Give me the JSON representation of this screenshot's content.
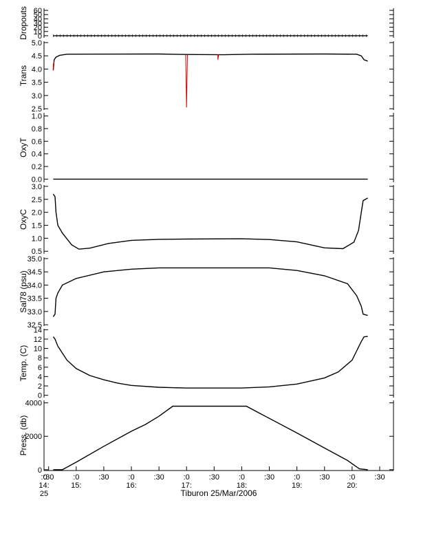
{
  "chart_data": {
    "type": "line",
    "xlabel": "Tiburon 25/Mar/2006",
    "x_range": [
      "14:25",
      "20:45"
    ],
    "x_ticks": [
      {
        "t": "14:30",
        "label": ":30"
      },
      {
        "t": "15:00",
        "label": ":0"
      },
      {
        "t": "15:30",
        "label": ":30"
      },
      {
        "t": "16:00",
        "label": ":0"
      },
      {
        "t": "16:30",
        "label": ":30"
      },
      {
        "t": "17:00",
        "label": ":0"
      },
      {
        "t": "17:30",
        "label": ":30"
      },
      {
        "t": "18:00",
        "label": ":0"
      },
      {
        "t": "18:30",
        "label": ":30"
      },
      {
        "t": "19:00",
        "label": ":0"
      },
      {
        "t": "19:30",
        "label": ":30"
      },
      {
        "t": "20:00",
        "label": ":0"
      },
      {
        "t": "20:30",
        "label": ":30"
      }
    ],
    "x_start_label_line1": ":0",
    "x_start_label_line2": "14:",
    "x_start_label_line3": "25",
    "hour_labels": [
      {
        "t": "15:00",
        "label": "15:"
      },
      {
        "t": "16:00",
        "label": "16:"
      },
      {
        "t": "17:00",
        "label": "17:"
      },
      {
        "t": "18:00",
        "label": "18:"
      },
      {
        "t": "19:00",
        "label": "19:"
      },
      {
        "t": "20:00",
        "label": "20:"
      }
    ],
    "panels": [
      {
        "ylabel": "Dropouts",
        "ylim": [
          -5,
          65
        ],
        "yticks": [
          0,
          10,
          20,
          30,
          40,
          50,
          60
        ],
        "yticklabels": [
          "0",
          "10",
          "20",
          "30",
          "40",
          "50",
          "60"
        ],
        "series": [
          {
            "color": "#000000",
            "points": [
              [
                "14:35",
                0
              ],
              [
                "20:17",
                0
              ]
            ]
          }
        ]
      },
      {
        "ylabel": "Trans",
        "ylim": [
          2.45,
          5.05
        ],
        "yticks": [
          2.5,
          3.0,
          3.5,
          4.0,
          4.5,
          5.0
        ],
        "yticklabels": [
          "2.5",
          "3.0",
          "3.5",
          "4.0",
          "4.5",
          "5.0"
        ],
        "series": [
          {
            "color": "#000000",
            "points": [
              [
                "14:35",
                3.95
              ],
              [
                "14:36",
                4.35
              ],
              [
                "14:38",
                4.45
              ],
              [
                "14:42",
                4.52
              ],
              [
                "14:50",
                4.56
              ],
              [
                "16:30",
                4.57
              ],
              [
                "17:00",
                4.55
              ],
              [
                "17:40",
                4.54
              ],
              [
                "18:10",
                4.56
              ],
              [
                "19:30",
                4.57
              ],
              [
                "20:05",
                4.56
              ],
              [
                "20:10",
                4.5
              ],
              [
                "20:13",
                4.35
              ],
              [
                "20:17",
                4.3
              ]
            ]
          },
          {
            "color": "#cc0000",
            "points": [
              [
                "16:59",
                4.55
              ],
              [
                "17:00",
                2.55
              ],
              [
                "17:01",
                4.55
              ]
            ]
          },
          {
            "color": "#cc0000",
            "points": [
              [
                "17:34",
                4.55
              ],
              [
                "17:34",
                4.35
              ],
              [
                "17:35",
                4.55
              ]
            ]
          },
          {
            "color": "#cc0000",
            "points": [
              [
                "14:35",
                4.2
              ],
              [
                "14:35",
                3.95
              ],
              [
                "14:36",
                4.3
              ]
            ]
          }
        ]
      },
      {
        "ylabel": "OxyT",
        "ylim": [
          -0.05,
          1.05
        ],
        "yticks": [
          0.0,
          0.2,
          0.4,
          0.6,
          0.8,
          1.0
        ],
        "yticklabels": [
          "0.0",
          "0.2",
          "0.4",
          "0.6",
          "0.8",
          "1.0"
        ],
        "series": [
          {
            "color": "#000000",
            "points": [
              [
                "14:35",
                0
              ],
              [
                "20:17",
                0
              ]
            ]
          }
        ]
      },
      {
        "ylabel": "OxyC",
        "ylim": [
          0.4,
          3.05
        ],
        "yticks": [
          0.5,
          1.0,
          1.5,
          2.0,
          2.5,
          3.0
        ],
        "yticklabels": [
          "0.5",
          "1.0",
          "1.5",
          "2.0",
          "2.5",
          "3.0"
        ],
        "series": [
          {
            "color": "#000000",
            "points": [
              [
                "14:35",
                2.7
              ],
              [
                "14:37",
                2.6
              ],
              [
                "14:38",
                2.0
              ],
              [
                "14:40",
                1.5
              ],
              [
                "14:45",
                1.2
              ],
              [
                "14:55",
                0.75
              ],
              [
                "15:03",
                0.58
              ],
              [
                "15:15",
                0.62
              ],
              [
                "15:35",
                0.8
              ],
              [
                "16:00",
                0.92
              ],
              [
                "16:30",
                0.96
              ],
              [
                "17:00",
                0.97
              ],
              [
                "18:00",
                0.98
              ],
              [
                "18:30",
                0.95
              ],
              [
                "19:00",
                0.86
              ],
              [
                "19:30",
                0.63
              ],
              [
                "19:50",
                0.6
              ],
              [
                "20:02",
                0.85
              ],
              [
                "20:07",
                1.3
              ],
              [
                "20:10",
                2.0
              ],
              [
                "20:12",
                2.45
              ],
              [
                "20:17",
                2.55
              ]
            ]
          }
        ]
      },
      {
        "ylabel": "Sal78 (psu)",
        "ylim": [
          32.45,
          35.05
        ],
        "yticks": [
          32.5,
          33.0,
          33.5,
          34.0,
          34.5,
          35.0
        ],
        "yticklabels": [
          "32.5",
          "33.0",
          "33.5",
          "34.0",
          "34.5",
          "35.0"
        ],
        "series": [
          {
            "color": "#000000",
            "points": [
              [
                "14:35",
                32.8
              ],
              [
                "14:37",
                32.9
              ],
              [
                "14:38",
                33.5
              ],
              [
                "14:40",
                33.7
              ],
              [
                "14:45",
                34.0
              ],
              [
                "15:00",
                34.25
              ],
              [
                "15:30",
                34.5
              ],
              [
                "16:00",
                34.6
              ],
              [
                "16:30",
                34.65
              ],
              [
                "18:30",
                34.65
              ],
              [
                "19:00",
                34.55
              ],
              [
                "19:30",
                34.35
              ],
              [
                "19:55",
                34.05
              ],
              [
                "20:05",
                33.6
              ],
              [
                "20:10",
                33.2
              ],
              [
                "20:12",
                32.9
              ],
              [
                "20:17",
                32.85
              ]
            ]
          }
        ]
      },
      {
        "ylabel": "Temp. (C)",
        "ylim": [
          -0.5,
          14.2
        ],
        "yticks": [
          0,
          2,
          4,
          6,
          8,
          10,
          12,
          14
        ],
        "yticklabels": [
          "0",
          "2",
          "4",
          "6",
          "8",
          "10",
          "12",
          "14"
        ],
        "series": [
          {
            "color": "#000000",
            "points": [
              [
                "14:35",
                12.5
              ],
              [
                "14:37",
                12.0
              ],
              [
                "14:40",
                10.5
              ],
              [
                "14:45",
                9.0
              ],
              [
                "14:50",
                7.5
              ],
              [
                "15:00",
                5.7
              ],
              [
                "15:15",
                4.2
              ],
              [
                "15:30",
                3.3
              ],
              [
                "15:45",
                2.6
              ],
              [
                "16:00",
                2.1
              ],
              [
                "16:30",
                1.7
              ],
              [
                "17:00",
                1.55
              ],
              [
                "18:00",
                1.55
              ],
              [
                "18:30",
                1.8
              ],
              [
                "19:00",
                2.4
              ],
              [
                "19:30",
                3.7
              ],
              [
                "19:45",
                5.0
              ],
              [
                "20:00",
                7.5
              ],
              [
                "20:05",
                9.5
              ],
              [
                "20:10",
                11.5
              ],
              [
                "20:13",
                12.5
              ],
              [
                "20:17",
                12.6
              ]
            ]
          }
        ]
      },
      {
        "ylabel": "Press. (db)",
        "ylim": [
          -50,
          4150
        ],
        "yticks": [
          0,
          2000,
          4000
        ],
        "yticklabels": [
          "0",
          "2000",
          "4000"
        ],
        "series": [
          {
            "color": "#000000",
            "points": [
              [
                "14:35",
                0
              ],
              [
                "14:45",
                0
              ],
              [
                "15:00",
                450
              ],
              [
                "15:30",
                1400
              ],
              [
                "16:00",
                2300
              ],
              [
                "16:15",
                2700
              ],
              [
                "16:30",
                3200
              ],
              [
                "16:45",
                3800
              ],
              [
                "17:45",
                3800
              ],
              [
                "18:05",
                3800
              ],
              [
                "19:00",
                2200
              ],
              [
                "19:30",
                1300
              ],
              [
                "19:55",
                550
              ],
              [
                "20:08",
                50
              ],
              [
                "20:17",
                0
              ]
            ]
          }
        ]
      }
    ]
  }
}
